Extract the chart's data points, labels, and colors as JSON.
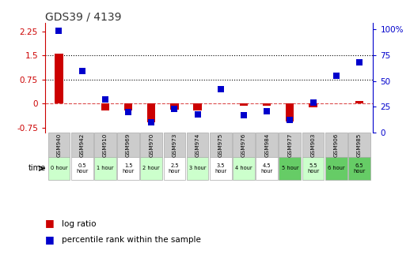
{
  "title": "GDS39 / 4139",
  "samples": [
    "GSM940",
    "GSM942",
    "GSM910",
    "GSM969",
    "GSM970",
    "GSM973",
    "GSM974",
    "GSM975",
    "GSM976",
    "GSM984",
    "GSM977",
    "GSM903",
    "GSM906",
    "GSM985"
  ],
  "time_labels": [
    "0 hour",
    "0.5\nhour",
    "1 hour",
    "1.5\nhour",
    "2 hour",
    "2.5\nhour",
    "3 hour",
    "3.5\nhour",
    "4 hour",
    "4.5\nhour",
    "5 hour",
    "5.5\nhour",
    "6 hour",
    "6.5\nhour"
  ],
  "log_ratio": [
    1.55,
    0.02,
    -0.22,
    -0.22,
    -0.58,
    -0.18,
    -0.22,
    0.02,
    -0.05,
    -0.07,
    -0.55,
    -0.1,
    0.02,
    0.08
  ],
  "percentile": [
    99,
    60,
    32,
    20,
    10,
    23,
    18,
    42,
    17,
    21,
    12,
    29,
    55,
    68
  ],
  "left_ylim": [
    -0.9,
    2.5
  ],
  "right_ylim": [
    0,
    106
  ],
  "left_yticks": [
    -0.75,
    0,
    0.75,
    1.5,
    2.25
  ],
  "right_yticks": [
    0,
    25,
    50,
    75,
    100
  ],
  "hline_y": [
    0.75,
    1.5
  ],
  "bar_color": "#cc0000",
  "dot_color": "#0000cc",
  "zero_line_color": "#cc0000",
  "grid_color": "#000000",
  "bg_color": "#ffffff",
  "time_colors": [
    "#ccffcc",
    "#ffffff",
    "#ccffcc",
    "#ffffff",
    "#ccffcc",
    "#ffffff",
    "#ccffcc",
    "#ffffff",
    "#ccffcc",
    "#ffffff",
    "#66cc66",
    "#ccffcc",
    "#66cc66",
    "#66cc66"
  ],
  "gsm_bg": "#cccccc",
  "bar_width": 0.35,
  "dot_size": 40,
  "legend_red": "log ratio",
  "legend_blue": "percentile rank within the sample"
}
